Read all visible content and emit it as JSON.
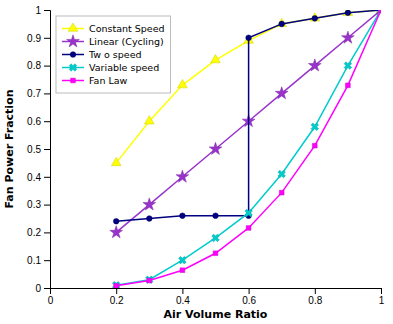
{
  "chart_data": {
    "type": "line",
    "xlabel": "Air Volume Ratio",
    "ylabel": "Fan Power Fraction",
    "xlim": [
      0,
      1.0
    ],
    "ylim": [
      0,
      1.0
    ],
    "xticks": [
      0,
      0.2,
      0.4,
      0.6,
      0.8,
      1.0
    ],
    "yticks": [
      0,
      0.1,
      0.2,
      0.3,
      0.4,
      0.5,
      0.6,
      0.7,
      0.8,
      0.9,
      1.0
    ],
    "grid": false,
    "legend": "upper left",
    "series": [
      {
        "name": "Constant Speed",
        "color": "#ffff00",
        "marker": "triangle",
        "line_style": "solid",
        "x": [
          0.2,
          0.3,
          0.4,
          0.5,
          0.6,
          0.7,
          0.8,
          0.9,
          1.0
        ],
        "values": [
          0.45,
          0.6,
          0.73,
          0.82,
          0.89,
          0.95,
          0.97,
          0.99,
          1.0
        ]
      },
      {
        "name": "Linear (Cycling)",
        "color": "#9933cc",
        "marker": "star",
        "line_style": "solid",
        "x": [
          0.2,
          0.3,
          0.4,
          0.5,
          0.6,
          0.7,
          0.8,
          0.9,
          1.0
        ],
        "values": [
          0.2,
          0.3,
          0.4,
          0.5,
          0.6,
          0.7,
          0.8,
          0.9,
          1.0
        ]
      },
      {
        "name": "Tw o speed",
        "color": "#000080",
        "marker": "circle",
        "line_style": "solid",
        "x": [
          0.2,
          0.3,
          0.4,
          0.5,
          0.6,
          0.6,
          0.7,
          0.8,
          0.9,
          1.0
        ],
        "values": [
          0.24,
          0.25,
          0.26,
          0.26,
          0.26,
          0.9,
          0.95,
          0.97,
          0.99,
          1.0
        ]
      },
      {
        "name": "Variable speed",
        "color": "#00cccc",
        "marker": "x",
        "line_style": "solid",
        "x": [
          0.2,
          0.3,
          0.4,
          0.5,
          0.6,
          0.7,
          0.8,
          0.9,
          1.0
        ],
        "values": [
          0.01,
          0.03,
          0.1,
          0.18,
          0.27,
          0.41,
          0.58,
          0.8,
          1.0
        ]
      },
      {
        "name": "Fan Law",
        "color": "#ff00ff",
        "marker": "square",
        "line_style": "solid",
        "x": [
          0.2,
          0.3,
          0.4,
          0.5,
          0.6,
          0.7,
          0.8,
          0.9,
          1.0
        ],
        "values": [
          0.008,
          0.027,
          0.064,
          0.125,
          0.216,
          0.343,
          0.512,
          0.729,
          1.0
        ]
      }
    ]
  }
}
